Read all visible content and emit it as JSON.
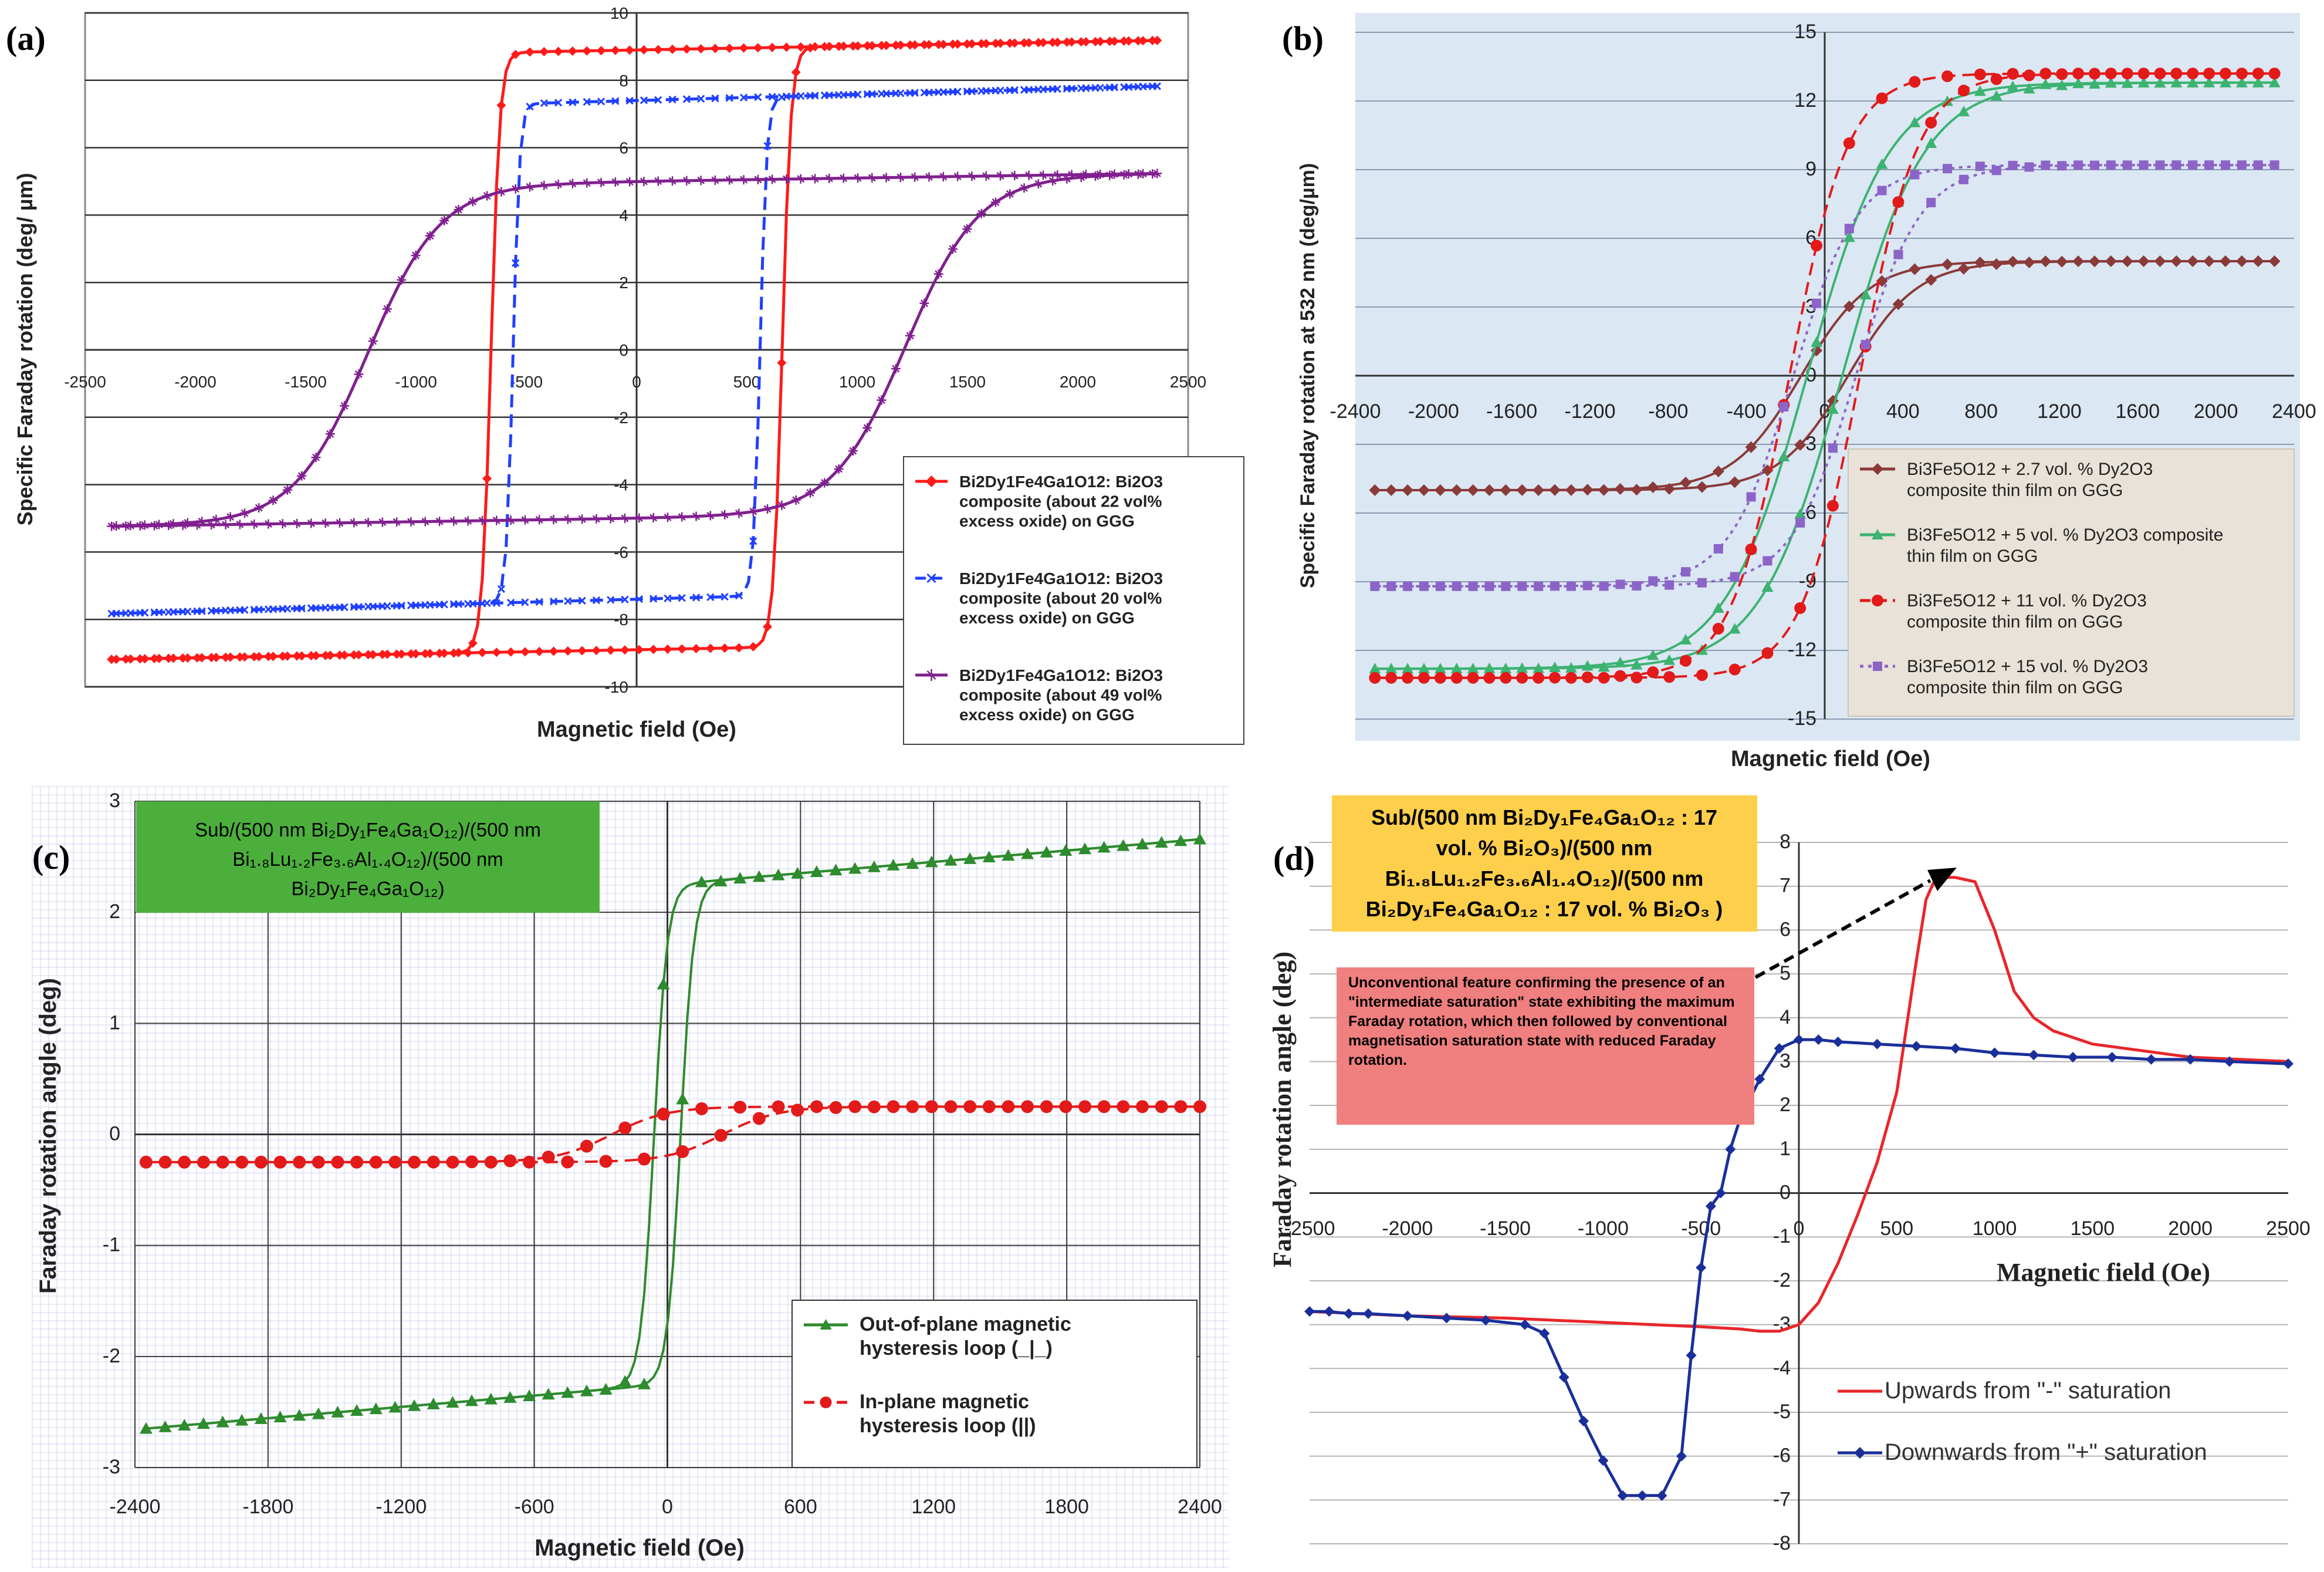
{
  "chart_data": [
    {
      "panel": "(a)",
      "type": "line",
      "xlabel": "Magnetic field (Oe)",
      "ylabel": "Specific Faraday rotation (deg/  µm)",
      "xlim": [
        -2500,
        2500
      ],
      "ylim": [
        -10,
        10
      ],
      "x_ticks": [
        "-2500",
        "-2000",
        "-1500",
        "-1000",
        "-500",
        "0",
        "500",
        "1000",
        "1500",
        "2000",
        "2500"
      ],
      "y_ticks": [
        "10",
        "8",
        "6",
        "4",
        "2",
        "0",
        "-2",
        "-4",
        "-6",
        "-8",
        "-10"
      ],
      "grid": "horizontal",
      "legend": "bottom-right",
      "series": [
        {
          "name": "Bi2Dy1Fe4Ga1O12: Bi2O3 composite (about 22 vol% excess oxide) on GGG",
          "color": "#ff1a1a",
          "marker": "diamond",
          "dash": "solid",
          "Ms": 8.9,
          "Hc": 660,
          "sat_field": 40,
          "slope": 0.00012
        },
        {
          "name": "Bi2Dy1Fe4Ga1O12: Bi2O3 composite (about 20 vol% excess oxide) on GGG",
          "color": "#1f3fff",
          "marker": "x",
          "dash": "dashed",
          "Ms": 7.4,
          "Hc": 560,
          "sat_field": 30,
          "slope": 0.00018
        },
        {
          "name": "Bi2Dy1Fe4Ga1O12: Bi2O3 composite (about 49 vol% excess oxide) on GGG",
          "color": "#80208f",
          "marker": "cross",
          "dash": "solid",
          "Ms": 5.0,
          "Hc": 1220,
          "sat_field": 330,
          "slope": 0.0001
        }
      ]
    },
    {
      "panel": "(b)",
      "type": "line",
      "xlabel": "Magnetic field (Oe)",
      "ylabel": "Specific Faraday rotation at 532 nm (deg/µm)",
      "xlim": [
        -2400,
        2400
      ],
      "ylim": [
        -15,
        15
      ],
      "x_ticks": [
        "-2400",
        "-2000",
        "-1600",
        "-1200",
        "-800",
        "-400",
        "0",
        "400",
        "800",
        "1200",
        "1600",
        "2000",
        "2400"
      ],
      "y_ticks": [
        "15",
        "12",
        "9",
        "6",
        "3",
        "0",
        "-3",
        "-6",
        "-9",
        "-12",
        "-15"
      ],
      "grid": "horizontal",
      "legend": "bottom-right",
      "series": [
        {
          "name": "Bi3Fe5O12 + 2.7 vol. % Dy2O3 composite thin film on GGG",
          "color": "#8b3a3a",
          "marker": "diamond",
          "dash": "solid",
          "Ms": 5.0,
          "Hc": 120,
          "sat_field": 350
        },
        {
          "name": "Bi3Fe5O12 + 5 vol. % Dy2O3 composite thin film on GGG",
          "color": "#3cb371",
          "marker": "triangle",
          "dash": "solid",
          "Ms": 12.8,
          "Hc": 90,
          "sat_field": 420
        },
        {
          "name": "Bi3Fe5O12 + 11 vol. % Dy2O3 composite thin film on GGG",
          "color": "#e31a1a",
          "marker": "circle",
          "dash": "dashed",
          "Ms": 13.2,
          "Hc": 180,
          "sat_field": 300
        },
        {
          "name": "Bi3Fe5O12 + 15 vol. % Dy2O3 composite thin film on GGG",
          "color": "#8c64c8",
          "marker": "square",
          "dash": "dotted",
          "Ms": 9.2,
          "Hc": 160,
          "sat_field": 330
        }
      ]
    },
    {
      "panel": "(c)",
      "type": "line",
      "xlabel": "Magnetic field (Oe)",
      "ylabel": "Faraday rotation angle (deg)",
      "xlim": [
        -2400,
        2400
      ],
      "ylim": [
        -3,
        3
      ],
      "x_ticks": [
        "-2400",
        "-1800",
        "-1200",
        "-600",
        "0",
        "600",
        "1200",
        "1800",
        "2400"
      ],
      "y_ticks": [
        "3",
        "2",
        "1",
        "0",
        "-1",
        "-2",
        "-3"
      ],
      "grid": "both",
      "legend": "bottom-right",
      "annotation_lines": [
        "Sub/(500 nm Bi₂Dy₁Fe₄Ga₁O₁₂)/(500 nm",
        "Bi₁.₈Lu₁.₂Fe₃.₆Al₁.₄O₁₂)/(500  nm",
        "Bi₂Dy₁Fe₄Ga₁O₁₂)"
      ],
      "series": [
        {
          "name": "Out-of-plane magnetic hysteresis loop (_|_)",
          "color": "#2e8b2e",
          "marker": "triangle",
          "dash": "solid",
          "Ms": 2.25,
          "Hc": 60,
          "sat_field": 60,
          "slope": 0.00017
        },
        {
          "name": "In-plane magnetic hysteresis loop (||)",
          "color": "#e31a1a",
          "marker": "circle",
          "dash": "dashed",
          "Ms": 0.25,
          "Hc": 250,
          "sat_field": 250
        }
      ]
    },
    {
      "panel": "(d)",
      "type": "line",
      "xlabel": "Magnetic field (Oe)",
      "ylabel": "Faraday rotation angle (deg)",
      "xlim": [
        -2500,
        2500
      ],
      "ylim": [
        -8,
        8
      ],
      "x_ticks": [
        "-2500",
        "-2000",
        "-1500",
        "-1000",
        "-500",
        "0",
        "500",
        "1000",
        "1500",
        "2000",
        "2500"
      ],
      "y_ticks": [
        "8",
        "7",
        "6",
        "5",
        "4",
        "3",
        "2",
        "1",
        "0",
        "-1",
        "-2",
        "-3",
        "-4",
        "-5",
        "-6",
        "-7",
        "-8"
      ],
      "grid": "horizontal",
      "legend": "bottom-right",
      "annotation_lines": [
        "Sub/(500 nm Bi₂Dy₁Fe₄Ga₁O₁₂ : 17",
        "vol. % Bi₂O₃)/(500 nm",
        "Bi₁.₈Lu₁.₂Fe₃.₆Al₁.₄O₁₂)/(500 nm",
        "Bi₂Dy₁Fe₄Ga₁O₁₂ : 17 vol. % Bi₂O₃ )"
      ],
      "note": "Unconventional feature confirming the presence of an \"intermediate saturation\" state exhibiting the maximum Faraday rotation, which then followed by conventional magnetisation saturation state with reduced Faraday rotation.",
      "series": [
        {
          "name": "Upwards from \"-\" saturation",
          "color": "#e8262a",
          "marker": "none",
          "x": [
            -2500,
            -2000,
            -1500,
            -1000,
            -500,
            -300,
            -200,
            -100,
            0,
            100,
            200,
            300,
            400,
            500,
            550,
            600,
            650,
            700,
            800,
            900,
            1000,
            1100,
            1200,
            1300,
            1500,
            2000,
            2500
          ],
          "y": [
            -2.7,
            -2.8,
            -2.85,
            -2.95,
            -3.05,
            -3.1,
            -3.15,
            -3.15,
            -3.0,
            -2.5,
            -1.6,
            -0.5,
            0.7,
            2.3,
            3.8,
            5.3,
            6.7,
            7.2,
            7.2,
            7.1,
            6.0,
            4.6,
            4.0,
            3.7,
            3.4,
            3.1,
            3.0
          ]
        },
        {
          "name": "Downwards from \"+\" saturation",
          "color": "#1a2f9a",
          "marker": "diamond",
          "x": [
            -2500,
            -2400,
            -2300,
            -2200,
            -2000,
            -1800,
            -1600,
            -1400,
            -1300,
            -1200,
            -1100,
            -1000,
            -900,
            -800,
            -700,
            -600,
            -550,
            -500,
            -450,
            -400,
            -350,
            -300,
            -200,
            -100,
            0,
            100,
            200,
            400,
            600,
            800,
            1000,
            1200,
            1400,
            1600,
            1800,
            2000,
            2200,
            2500
          ],
          "y": [
            -2.7,
            -2.7,
            -2.75,
            -2.75,
            -2.8,
            -2.85,
            -2.9,
            -3.0,
            -3.2,
            -4.2,
            -5.2,
            -6.1,
            -6.9,
            -6.9,
            -6.9,
            -6.0,
            -3.7,
            -1.7,
            -0.3,
            0.0,
            1.0,
            1.7,
            2.6,
            3.3,
            3.5,
            3.5,
            3.45,
            3.4,
            3.35,
            3.3,
            3.2,
            3.15,
            3.1,
            3.1,
            3.05,
            3.05,
            3.0,
            2.95
          ]
        }
      ]
    }
  ]
}
